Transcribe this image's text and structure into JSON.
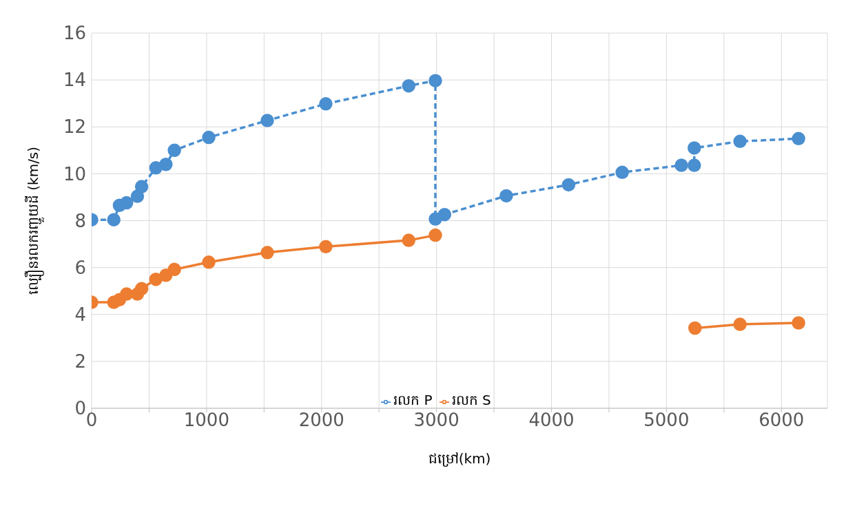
{
  "chart_data": {
    "type": "line",
    "xlabel": "ជម្រៅ(km)",
    "ylabel": "ល្បឿនរលករញ្ជួយដី (km/s)",
    "xlim": [
      0,
      6400
    ],
    "ylim": [
      0,
      16
    ],
    "xticks": [
      0,
      {
        "value": 500,
        "label": null
      },
      1000,
      {
        "value": 1500,
        "label": null
      },
      2000,
      {
        "value": 2500,
        "label": null
      },
      3000,
      {
        "value": 3500,
        "label": null
      },
      4000,
      {
        "value": 4500,
        "label": null
      },
      5000,
      {
        "value": 5500,
        "label": null
      },
      6000
    ],
    "yticks": [
      0,
      2,
      4,
      6,
      8,
      10,
      12,
      14,
      16
    ],
    "grid": true,
    "legend": "bottom",
    "marker": "circle",
    "series": [
      {
        "name": "រលក P",
        "color": "#4a8fd0",
        "line_style": "dashed",
        "x": [
          0,
          193,
          242,
          304,
          398,
          435,
          559,
          646,
          720,
          1019,
          1528,
          2037,
          2758,
          2990,
          2990,
          3070,
          3607,
          4149,
          4615,
          5130,
          5242,
          5242,
          5640,
          6149
        ],
        "values": [
          8.04,
          8.04,
          8.65,
          8.76,
          9.04,
          9.45,
          10.25,
          10.4,
          11.0,
          11.55,
          12.27,
          12.98,
          13.75,
          13.97,
          8.07,
          8.26,
          9.06,
          9.53,
          10.06,
          10.36,
          10.36,
          11.1,
          11.38,
          11.5
        ]
      },
      {
        "name": "រលក S",
        "color": "#ed7d31",
        "line_style": "solid",
        "x": [
          0,
          193,
          242,
          304,
          398,
          435,
          559,
          646,
          720,
          1019,
          1528,
          2037,
          2758,
          2990,
          4000,
          5248,
          5640,
          6149
        ],
        "values": [
          4.52,
          4.52,
          4.63,
          4.87,
          4.87,
          5.1,
          5.5,
          5.67,
          5.92,
          6.23,
          6.64,
          6.89,
          7.16,
          7.38,
          null,
          3.42,
          3.58,
          3.64
        ]
      }
    ]
  }
}
